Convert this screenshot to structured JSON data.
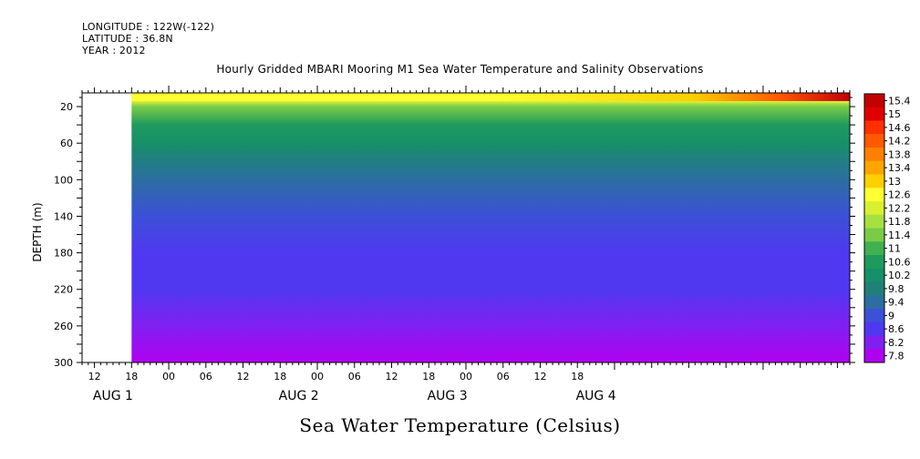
{
  "header": {
    "longitude": "LONGITUDE : 122W(-122)",
    "latitude": "LATITUDE : 36.8N",
    "year": "YEAR : 2012"
  },
  "title": "Hourly Gridded MBARI Mooring M1 Sea Water Temperature and Salinity Observations",
  "bottom_title": "Sea Water Temperature (Celsius)",
  "chart_data": {
    "type": "heatmap",
    "title": "Hourly Gridded MBARI Mooring M1 Sea Water Temperature and Salinity Observations",
    "ylabel": "DEPTH (m)",
    "xlabel": "",
    "y_range": [
      300,
      5
    ],
    "y_ticks": [
      "20",
      "60",
      "100",
      "140",
      "180",
      "220",
      "260",
      "300"
    ],
    "y_tick_values": [
      20,
      60,
      100,
      140,
      180,
      220,
      260,
      300
    ],
    "x_range_hours": [
      -14,
      110
    ],
    "x_ticks": [
      "12",
      "18",
      "00",
      "06",
      "12",
      "18",
      "00",
      "06",
      "12",
      "18",
      "00",
      "06",
      "12",
      "18"
    ],
    "x_tick_hours": [
      -12,
      -6,
      0,
      6,
      12,
      18,
      24,
      30,
      36,
      42,
      48,
      54,
      60,
      66
    ],
    "day_labels": [
      "AUG 1",
      "AUG 2",
      "AUG 3",
      "AUG 4"
    ],
    "day_label_hours": [
      -9,
      21,
      45,
      69
    ],
    "data_start_hour": -6,
    "colorbar_levels": [
      "15.4",
      "15",
      "14.6",
      "14.2",
      "13.8",
      "13.4",
      "13",
      "12.6",
      "12.2",
      "11.8",
      "11.4",
      "11",
      "10.6",
      "10.2",
      "9.8",
      "9.4",
      "9",
      "8.6",
      "8.2",
      "7.8"
    ],
    "colorbar_colors": [
      "#c40000",
      "#e00000",
      "#ff3000",
      "#ff5a00",
      "#ff8000",
      "#ffa500",
      "#ffd000",
      "#ffff33",
      "#d8f030",
      "#a8e040",
      "#78cc46",
      "#40b050",
      "#1f9a5e",
      "#169068",
      "#208078",
      "#2c6ea0",
      "#3c50d8",
      "#5038f0",
      "#8020f0",
      "#b000f0"
    ],
    "temperature_profile": [
      {
        "depth": 5,
        "temp": 13.4
      },
      {
        "depth": 12,
        "temp": 12.6
      },
      {
        "depth": 20,
        "temp": 11.6
      },
      {
        "depth": 40,
        "temp": 10.8
      },
      {
        "depth": 60,
        "temp": 10.2
      },
      {
        "depth": 100,
        "temp": 9.6
      },
      {
        "depth": 140,
        "temp": 9.2
      },
      {
        "depth": 180,
        "temp": 8.9
      },
      {
        "depth": 220,
        "temp": 8.6
      },
      {
        "depth": 260,
        "temp": 8.3
      },
      {
        "depth": 300,
        "temp": 7.9
      }
    ],
    "surface_max_temp": 15.4
  }
}
